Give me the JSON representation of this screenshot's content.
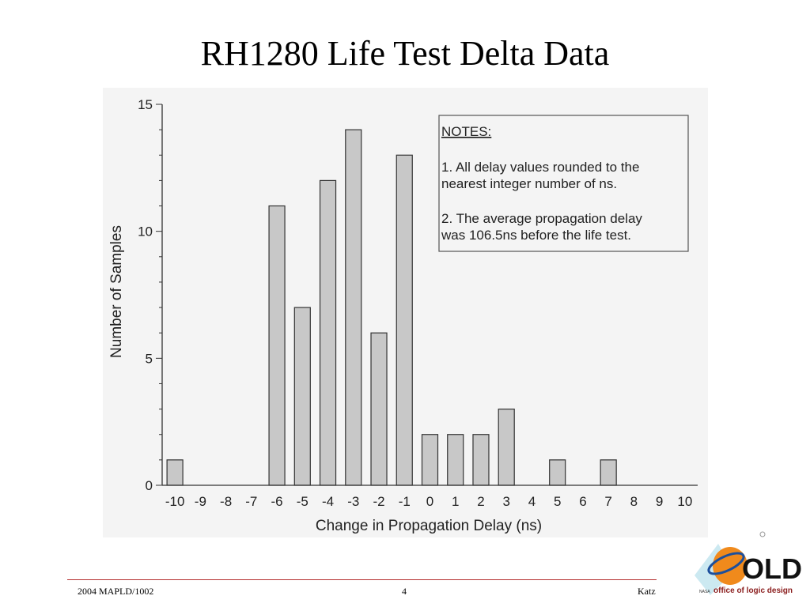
{
  "slide": {
    "title": "RH1280 Life Test Delta Data",
    "footer_left": "2004 MAPLD/1002",
    "footer_page": "4",
    "footer_right": "Katz",
    "logo": {
      "main_text": "OLD",
      "caption": "office of logic design",
      "agency_mark": "NASA"
    }
  },
  "chart_data": {
    "type": "bar",
    "title": "",
    "xlabel": "Change in Propagation Delay (ns)",
    "ylabel": "Number of Samples",
    "ylim": [
      0,
      15
    ],
    "yticks": [
      0,
      5,
      10,
      15
    ],
    "categories": [
      "-10",
      "-9",
      "-8",
      "-7",
      "-6",
      "-5",
      "-4",
      "-3",
      "-2",
      "-1",
      "0",
      "1",
      "2",
      "3",
      "4",
      "5",
      "6",
      "7",
      "8",
      "9",
      "10"
    ],
    "values": [
      1,
      0,
      0,
      0,
      11,
      7,
      12,
      14,
      6,
      13,
      2,
      2,
      2,
      3,
      0,
      1,
      0,
      1,
      0,
      0,
      0
    ],
    "bar_color": "#c8c8c8",
    "grid": false,
    "notes": {
      "heading": "NOTES:",
      "note1_line1": "1.  All delay values rounded to the",
      "note1_line2": "nearest integer number of ns.",
      "note2_line1": "2.  The average propagation delay",
      "note2_line2": "was 106.5ns before the life test."
    }
  }
}
